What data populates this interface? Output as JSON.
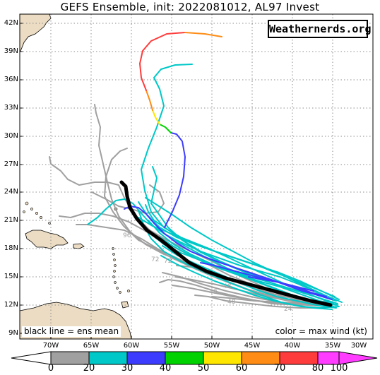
{
  "title": "GEFS Ensemble, init: 2022081012, AL97 Invest",
  "brand": "Weathernerds.org",
  "legend_left": "black line = ens mean",
  "legend_right": "color = max wind (kt)",
  "lat_labels": [
    "42N",
    "39N",
    "36N",
    "33N",
    "30N",
    "27N",
    "24N",
    "21N",
    "18N",
    "15N",
    "12N",
    "9N"
  ],
  "lon_labels": [
    "70W",
    "65W",
    "60W",
    "55W",
    "50W",
    "45W",
    "40W",
    "35W",
    "30W"
  ],
  "colorbar": {
    "ticks": [
      "0",
      "20",
      "30",
      "40",
      "50",
      "60",
      "70",
      "80",
      "100"
    ],
    "colors": [
      "#a0a0a0",
      "#00c8c8",
      "#3c3cff",
      "#00d200",
      "#ffe600",
      "#ff8c14",
      "#ff3c3c",
      "#ff3cff"
    ]
  },
  "colors": {
    "land": "#ebdcc3",
    "ocean": "#ffffff",
    "grid": "#8c8c8c",
    "ensemble_mean": "#000000",
    "ts_member": "#00c8c8",
    "td_member": "#a0a0a0"
  },
  "forecast_hour_labels": [
    "72",
    "72",
    "96",
    "48",
    "48",
    "48",
    "24"
  ]
}
